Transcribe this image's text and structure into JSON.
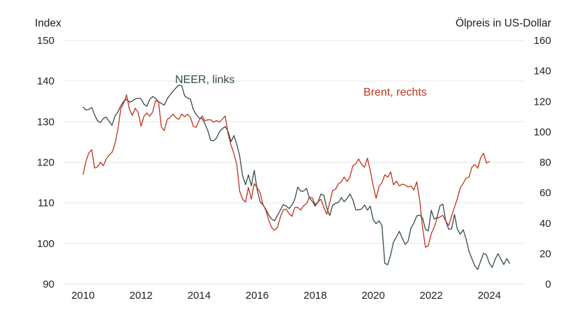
{
  "chart_data": {
    "type": "line",
    "left_axis": {
      "title": "Index",
      "range": [
        90,
        150
      ],
      "ticks": [
        "90",
        "100",
        "110",
        "120",
        "130",
        "140",
        "150"
      ]
    },
    "right_axis": {
      "title": "Ölpreis in US-Dollar",
      "range": [
        0,
        160
      ],
      "ticks": [
        "0",
        "20",
        "40",
        "60",
        "80",
        "100",
        "120",
        "140",
        "160"
      ]
    },
    "x_axis": {
      "range": [
        2010,
        2024.75
      ],
      "ticks": [
        "2010",
        "2012",
        "2014",
        "2016",
        "2018",
        "2020",
        "2022",
        "2024"
      ]
    },
    "grid": "horizontal",
    "series": [
      {
        "name": "NEER, links",
        "axis": "left",
        "color": "#344b47",
        "points": [
          [
            2010.0,
            133.6
          ],
          [
            2010.1,
            132.9
          ],
          [
            2010.2,
            133.0
          ],
          [
            2010.3,
            133.5
          ],
          [
            2010.4,
            131.7
          ],
          [
            2010.5,
            130.2
          ],
          [
            2010.6,
            129.8
          ],
          [
            2010.7,
            130.8
          ],
          [
            2010.8,
            131.1
          ],
          [
            2010.9,
            130.1
          ],
          [
            2011.0,
            129.1
          ],
          [
            2011.1,
            131.4
          ],
          [
            2011.2,
            132.4
          ],
          [
            2011.3,
            133.9
          ],
          [
            2011.4,
            135.0
          ],
          [
            2011.5,
            135.5
          ],
          [
            2011.6,
            134.8
          ],
          [
            2011.7,
            135.1
          ],
          [
            2011.8,
            135.6
          ],
          [
            2011.9,
            135.8
          ],
          [
            2012.0,
            135.6
          ],
          [
            2012.1,
            134.3
          ],
          [
            2012.2,
            133.8
          ],
          [
            2012.3,
            135.5
          ],
          [
            2012.4,
            136.2
          ],
          [
            2012.5,
            135.8
          ],
          [
            2012.6,
            134.9
          ],
          [
            2012.7,
            134.5
          ],
          [
            2012.8,
            134.1
          ],
          [
            2012.9,
            135.6
          ],
          [
            2013.0,
            136.6
          ],
          [
            2013.1,
            137.5
          ],
          [
            2013.2,
            138.3
          ],
          [
            2013.3,
            139.0
          ],
          [
            2013.4,
            138.9
          ],
          [
            2013.5,
            136.4
          ],
          [
            2013.6,
            135.8
          ],
          [
            2013.7,
            135.6
          ],
          [
            2013.8,
            133.0
          ],
          [
            2013.9,
            131.8
          ],
          [
            2014.0,
            130.9
          ],
          [
            2014.1,
            130.8
          ],
          [
            2014.2,
            129.5
          ],
          [
            2014.3,
            127.8
          ],
          [
            2014.4,
            125.4
          ],
          [
            2014.5,
            125.3
          ],
          [
            2014.6,
            126.0
          ],
          [
            2014.7,
            127.5
          ],
          [
            2014.8,
            128.3
          ],
          [
            2014.9,
            128.8
          ],
          [
            2015.0,
            127.6
          ],
          [
            2015.1,
            125.1
          ],
          [
            2015.2,
            126.6
          ],
          [
            2015.3,
            124.4
          ],
          [
            2015.4,
            121.5
          ],
          [
            2015.5,
            116.6
          ],
          [
            2015.6,
            114.5
          ],
          [
            2015.7,
            116.9
          ],
          [
            2015.8,
            114.2
          ],
          [
            2015.9,
            118.0
          ],
          [
            2016.0,
            113.3
          ],
          [
            2016.1,
            110.3
          ],
          [
            2016.2,
            109.5
          ],
          [
            2016.3,
            108.4
          ],
          [
            2016.4,
            107.0
          ],
          [
            2016.5,
            106.0
          ],
          [
            2016.6,
            105.6
          ],
          [
            2016.7,
            106.9
          ],
          [
            2016.8,
            108.2
          ],
          [
            2016.9,
            109.6
          ],
          [
            2017.0,
            109.2
          ],
          [
            2017.1,
            108.6
          ],
          [
            2017.2,
            109.5
          ],
          [
            2017.3,
            111.0
          ],
          [
            2017.4,
            113.9
          ],
          [
            2017.5,
            112.9
          ],
          [
            2017.6,
            112.9
          ],
          [
            2017.7,
            113.6
          ],
          [
            2017.8,
            111.2
          ],
          [
            2017.9,
            110.4
          ],
          [
            2018.0,
            109.2
          ],
          [
            2018.1,
            110.3
          ],
          [
            2018.2,
            112.2
          ],
          [
            2018.3,
            111.8
          ],
          [
            2018.4,
            108.7
          ],
          [
            2018.5,
            106.9
          ],
          [
            2018.6,
            109.4
          ],
          [
            2018.7,
            109.9
          ],
          [
            2018.8,
            110.1
          ],
          [
            2018.9,
            111.3
          ],
          [
            2019.0,
            110.3
          ],
          [
            2019.1,
            111.1
          ],
          [
            2019.2,
            112.2
          ],
          [
            2019.3,
            110.7
          ],
          [
            2019.4,
            108.3
          ],
          [
            2019.5,
            108.3
          ],
          [
            2019.6,
            108.5
          ],
          [
            2019.7,
            109.5
          ],
          [
            2019.8,
            108.2
          ],
          [
            2019.9,
            109.2
          ],
          [
            2020.0,
            105.8
          ],
          [
            2020.1,
            104.9
          ],
          [
            2020.2,
            105.6
          ],
          [
            2020.3,
            104.4
          ],
          [
            2020.4,
            95.1
          ],
          [
            2020.5,
            94.8
          ],
          [
            2020.6,
            97.2
          ],
          [
            2020.7,
            100.4
          ],
          [
            2020.8,
            101.6
          ],
          [
            2020.9,
            103.0
          ],
          [
            2021.0,
            101.3
          ],
          [
            2021.1,
            99.8
          ],
          [
            2021.2,
            100.5
          ],
          [
            2021.3,
            103.8
          ],
          [
            2021.4,
            105.0
          ],
          [
            2021.5,
            106.8
          ],
          [
            2021.6,
            107.0
          ],
          [
            2021.7,
            106.3
          ],
          [
            2021.8,
            103.5
          ],
          [
            2021.9,
            103.1
          ],
          [
            2022.0,
            108.2
          ],
          [
            2022.1,
            106.0
          ],
          [
            2022.2,
            106.4
          ],
          [
            2022.3,
            109.3
          ],
          [
            2022.4,
            109.7
          ],
          [
            2022.5,
            105.5
          ],
          [
            2022.6,
            103.5
          ],
          [
            2022.7,
            103.6
          ],
          [
            2022.8,
            107.2
          ],
          [
            2022.9,
            103.5
          ],
          [
            2023.0,
            102.3
          ],
          [
            2023.1,
            103.4
          ],
          [
            2023.2,
            101.1
          ],
          [
            2023.3,
            98.1
          ],
          [
            2023.4,
            96.3
          ],
          [
            2023.5,
            94.5
          ],
          [
            2023.6,
            93.6
          ],
          [
            2023.7,
            95.6
          ],
          [
            2023.8,
            97.6
          ],
          [
            2023.9,
            97.2
          ],
          [
            2024.0,
            95.2
          ],
          [
            2024.1,
            94.1
          ],
          [
            2024.2,
            96.1
          ],
          [
            2024.3,
            97.5
          ],
          [
            2024.4,
            96.1
          ],
          [
            2024.5,
            94.8
          ],
          [
            2024.6,
            96.3
          ],
          [
            2024.7,
            95.1
          ]
        ]
      },
      {
        "name": "Brent, rechts",
        "axis": "right",
        "color": "#c0321d",
        "points": [
          [
            2010.0,
            72.0
          ],
          [
            2010.1,
            80.5
          ],
          [
            2010.2,
            86.1
          ],
          [
            2010.3,
            88.3
          ],
          [
            2010.4,
            76.2
          ],
          [
            2010.5,
            77.0
          ],
          [
            2010.6,
            80.0
          ],
          [
            2010.7,
            77.8
          ],
          [
            2010.8,
            82.2
          ],
          [
            2010.9,
            84.8
          ],
          [
            2011.0,
            86.5
          ],
          [
            2011.1,
            92.0
          ],
          [
            2011.2,
            101.5
          ],
          [
            2011.3,
            115.0
          ],
          [
            2011.4,
            118.7
          ],
          [
            2011.5,
            124.3
          ],
          [
            2011.6,
            114.7
          ],
          [
            2011.7,
            110.8
          ],
          [
            2011.8,
            115.5
          ],
          [
            2011.9,
            112.8
          ],
          [
            2012.0,
            103.7
          ],
          [
            2012.1,
            110.2
          ],
          [
            2012.2,
            112.4
          ],
          [
            2012.3,
            110.3
          ],
          [
            2012.4,
            113.0
          ],
          [
            2012.5,
            120.5
          ],
          [
            2012.6,
            119.8
          ],
          [
            2012.7,
            103.2
          ],
          [
            2012.8,
            100.8
          ],
          [
            2012.9,
            108.0
          ],
          [
            2013.0,
            109.4
          ],
          [
            2013.1,
            111.6
          ],
          [
            2013.2,
            109.4
          ],
          [
            2013.3,
            108.2
          ],
          [
            2013.4,
            111.7
          ],
          [
            2013.5,
            109.9
          ],
          [
            2013.6,
            111.6
          ],
          [
            2013.7,
            109.6
          ],
          [
            2013.8,
            103.7
          ],
          [
            2013.9,
            102.9
          ],
          [
            2014.0,
            107.5
          ],
          [
            2014.1,
            110.4
          ],
          [
            2014.2,
            107.3
          ],
          [
            2014.3,
            107.9
          ],
          [
            2014.4,
            107.9
          ],
          [
            2014.5,
            106.3
          ],
          [
            2014.6,
            107.4
          ],
          [
            2014.7,
            106.4
          ],
          [
            2014.8,
            108.3
          ],
          [
            2014.9,
            110.4
          ],
          [
            2015.0,
            98.6
          ],
          [
            2015.1,
            91.1
          ],
          [
            2015.2,
            85.7
          ],
          [
            2015.3,
            78.2
          ],
          [
            2015.4,
            60.9
          ],
          [
            2015.5,
            55.7
          ],
          [
            2015.6,
            53.9
          ],
          [
            2015.7,
            63.5
          ],
          [
            2015.8,
            55.8
          ],
          [
            2015.9,
            66.0
          ],
          [
            2016.0,
            63.2
          ],
          [
            2016.1,
            60.2
          ],
          [
            2016.2,
            52.4
          ],
          [
            2016.3,
            48.5
          ],
          [
            2016.4,
            42.1
          ],
          [
            2016.5,
            37.0
          ],
          [
            2016.6,
            35.4
          ],
          [
            2016.7,
            37.2
          ],
          [
            2016.8,
            44.0
          ],
          [
            2016.9,
            48.8
          ],
          [
            2017.0,
            49.3
          ],
          [
            2017.1,
            46.2
          ],
          [
            2017.2,
            44.5
          ],
          [
            2017.3,
            50.4
          ],
          [
            2017.4,
            50.4
          ],
          [
            2017.5,
            48.7
          ],
          [
            2017.6,
            51.5
          ],
          [
            2017.7,
            52.7
          ],
          [
            2017.8,
            57.1
          ],
          [
            2017.9,
            56.6
          ],
          [
            2018.0,
            52.3
          ],
          [
            2018.1,
            54.0
          ],
          [
            2018.2,
            55.8
          ],
          [
            2018.3,
            50.4
          ],
          [
            2018.4,
            45.9
          ],
          [
            2018.5,
            53.5
          ],
          [
            2018.6,
            61.5
          ],
          [
            2018.7,
            62.2
          ],
          [
            2018.8,
            65.9
          ],
          [
            2018.9,
            67.2
          ],
          [
            2019.0,
            70.3
          ],
          [
            2019.1,
            67.3
          ],
          [
            2019.2,
            70.6
          ],
          [
            2019.3,
            77.8
          ],
          [
            2019.4,
            79.0
          ],
          [
            2019.5,
            82.1
          ],
          [
            2019.6,
            78.6
          ],
          [
            2019.7,
            76.7
          ],
          [
            2019.8,
            82.7
          ],
          [
            2019.9,
            74.5
          ],
          [
            2020.0,
            64.5
          ],
          [
            2020.1,
            56.3
          ],
          [
            2020.2,
            64.2
          ],
          [
            2020.3,
            66.6
          ],
          [
            2020.4,
            71.8
          ],
          [
            2020.5,
            70.2
          ],
          [
            2020.6,
            73.7
          ],
          [
            2020.7,
            65.2
          ],
          [
            2020.8,
            67.6
          ],
          [
            2020.9,
            64.5
          ],
          [
            2021.0,
            65.6
          ],
          [
            2021.1,
            65.1
          ],
          [
            2021.2,
            63.8
          ],
          [
            2021.3,
            64.3
          ],
          [
            2021.4,
            61.9
          ],
          [
            2021.5,
            67.1
          ],
          [
            2021.6,
            55.3
          ],
          [
            2021.7,
            37.0
          ],
          [
            2021.8,
            24.2
          ],
          [
            2021.9,
            25.2
          ],
          [
            2022.0,
            33.2
          ],
          [
            2022.1,
            37.3
          ],
          [
            2022.2,
            43.1
          ],
          [
            2022.3,
            44.1
          ],
          [
            2022.4,
            45.2
          ],
          [
            2022.5,
            41.3
          ],
          [
            2022.6,
            38.5
          ],
          [
            2022.7,
            44.7
          ],
          [
            2022.8,
            50.6
          ],
          [
            2022.9,
            56.1
          ],
          [
            2023.0,
            63.2
          ],
          [
            2023.1,
            66.2
          ],
          [
            2023.2,
            69.6
          ],
          [
            2023.3,
            70.3
          ],
          [
            2023.4,
            76.8
          ],
          [
            2023.5,
            78.4
          ],
          [
            2023.6,
            76.1
          ],
          [
            2023.7,
            82.8
          ],
          [
            2023.8,
            86.0
          ],
          [
            2023.9,
            79.5
          ],
          [
            2024.0,
            80.5
          ]
        ]
      }
    ],
    "annotations": [
      "NEER, links",
      "Brent, rechts"
    ]
  }
}
